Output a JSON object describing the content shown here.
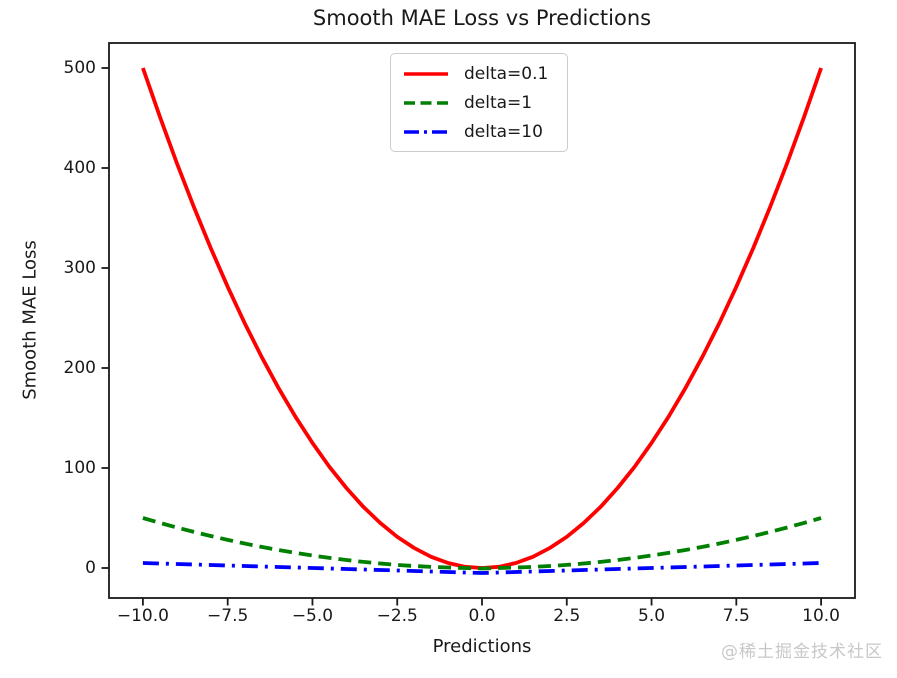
{
  "watermark": "@稀土掘金技术社区",
  "chart_data": {
    "type": "line",
    "title": "Smooth MAE Loss vs Predictions",
    "xlabel": "Predictions",
    "ylabel": "Smooth MAE Loss",
    "xlim": [
      -11,
      11
    ],
    "ylim": [
      -30,
      525
    ],
    "grid": false,
    "legend_position": "upper center",
    "axis_color": "#1a1a1a",
    "xticks": [
      -10.0,
      -7.5,
      -5.0,
      -2.5,
      0.0,
      2.5,
      5.0,
      7.5,
      10.0
    ],
    "xtick_labels": [
      "−10.0",
      "−7.5",
      "−5.0",
      "−2.5",
      "0.0",
      "2.5",
      "5.0",
      "7.5",
      "10.0"
    ],
    "yticks": [
      0,
      100,
      200,
      300,
      400,
      500
    ],
    "ytick_labels": [
      "0",
      "100",
      "200",
      "300",
      "400",
      "500"
    ],
    "x": [
      -10,
      -9.5,
      -9,
      -8.5,
      -8,
      -7.5,
      -7,
      -6.5,
      -6,
      -5.5,
      -5,
      -4.5,
      -4,
      -3.5,
      -3,
      -2.5,
      -2,
      -1.5,
      -1,
      -0.5,
      0,
      0.5,
      1,
      1.5,
      2,
      2.5,
      3,
      3.5,
      4,
      4.5,
      5,
      5.5,
      6,
      6.5,
      7,
      7.5,
      8,
      8.5,
      9,
      9.5,
      10
    ],
    "series": [
      {
        "name": "delta=0.1",
        "color": "#ff0000",
        "style": "solid",
        "values": [
          500,
          451.25,
          405,
          361.25,
          320,
          281.25,
          245,
          211.25,
          180,
          151.25,
          125,
          101.25,
          80,
          61.25,
          45,
          31.25,
          20,
          11.25,
          5,
          1.25,
          -0.05,
          1.25,
          5,
          11.25,
          20,
          31.25,
          45,
          61.25,
          80,
          101.25,
          125,
          151.25,
          180,
          211.25,
          245,
          281.25,
          320,
          361.25,
          405,
          451.25,
          500
        ]
      },
      {
        "name": "delta=1",
        "color": "#008000",
        "style": "dashed",
        "values": [
          50,
          45.13,
          40.5,
          36.13,
          32,
          28.13,
          24.5,
          21.13,
          18,
          15.13,
          12.5,
          10.13,
          8,
          6.13,
          4.5,
          3.13,
          2,
          1.13,
          0.5,
          0,
          -0.5,
          0,
          0.5,
          1.13,
          2,
          3.13,
          4.5,
          6.13,
          8,
          10.13,
          12.5,
          15.13,
          18,
          21.13,
          24.5,
          28.13,
          32,
          36.13,
          40.5,
          45.13,
          50
        ]
      },
      {
        "name": "delta=10",
        "color": "#0000ff",
        "style": "dashdot",
        "values": [
          5,
          4.5,
          4,
          3.5,
          3,
          2.5,
          2,
          1.5,
          1,
          0.5,
          0,
          -0.5,
          -1,
          -1.5,
          -2,
          -2.5,
          -3,
          -3.5,
          -4,
          -4.5,
          -5,
          -4.5,
          -4,
          -3.5,
          -3,
          -2.5,
          -2,
          -1.5,
          -1,
          -0.5,
          0,
          0.5,
          1,
          1.5,
          2,
          2.5,
          3,
          3.5,
          4,
          4.5,
          5
        ]
      }
    ]
  }
}
